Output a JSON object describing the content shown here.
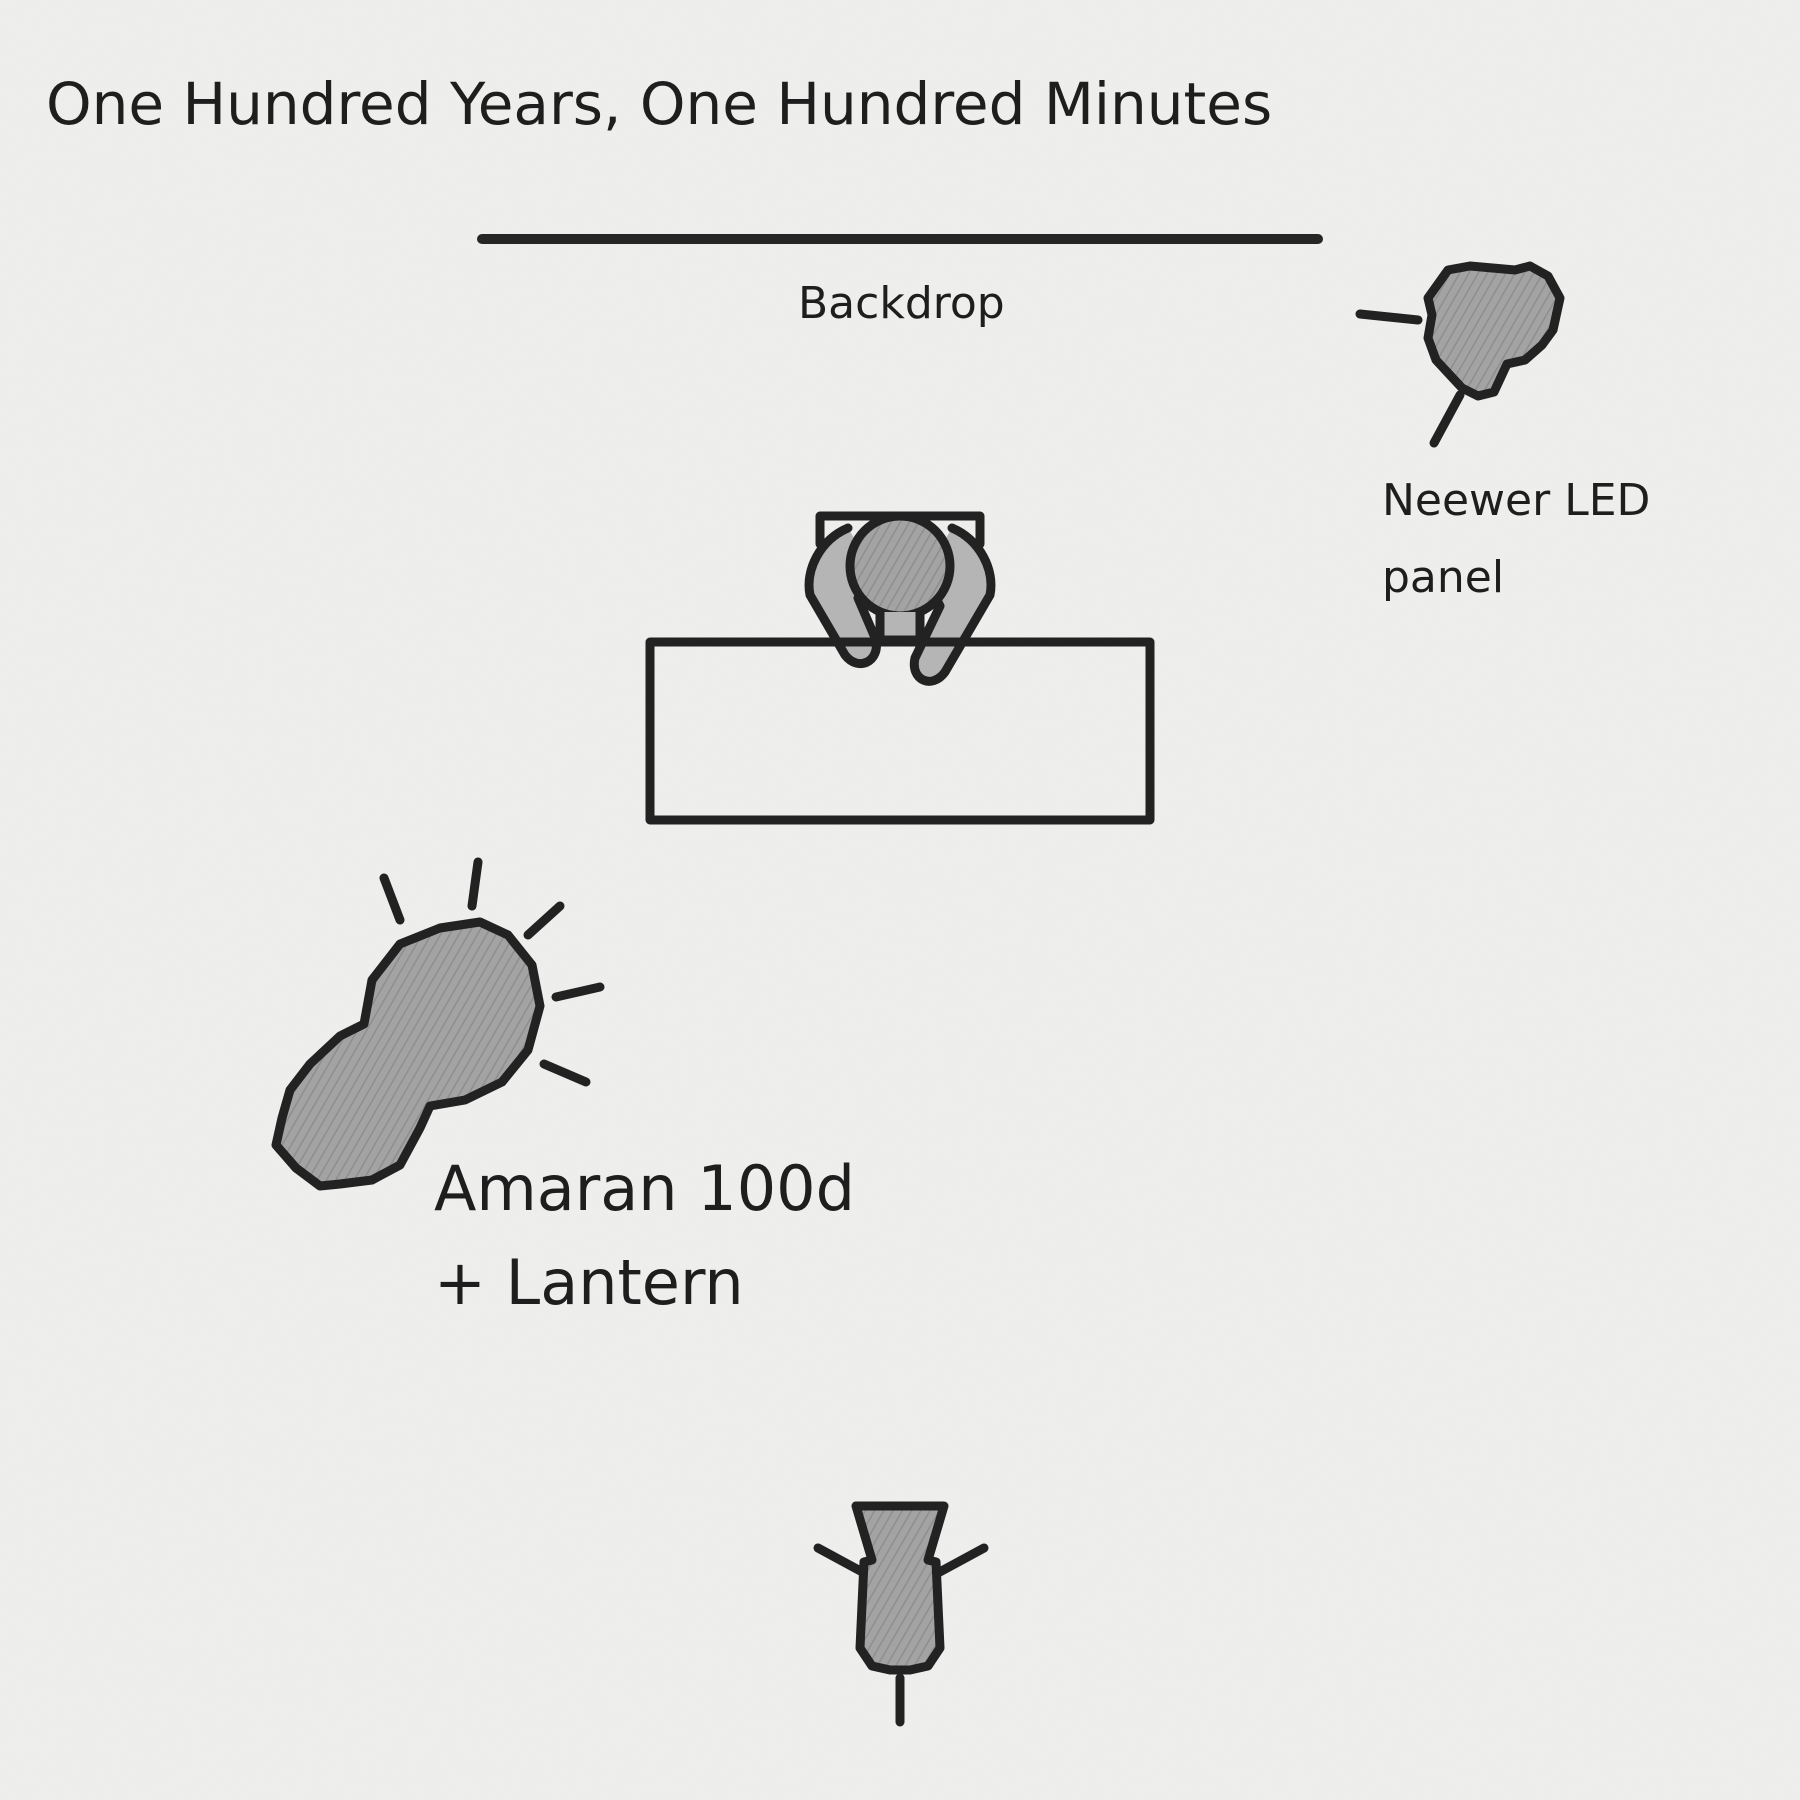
{
  "diagram": {
    "title": "One Hundred Years, One Hundred Minutes",
    "backdrop_label": "Backdrop",
    "key_light_label": [
      "Neewer LED",
      "panel"
    ],
    "fill_light_label": [
      "Amaran 100d",
      "+ Lantern"
    ]
  },
  "colors": {
    "paper": "#efefed",
    "ink": "#222222",
    "shade": "#9a9a9a"
  },
  "icons": [
    "led-panel-icon",
    "person-icon",
    "desk-icon",
    "amaran-light-icon",
    "camera-icon"
  ]
}
